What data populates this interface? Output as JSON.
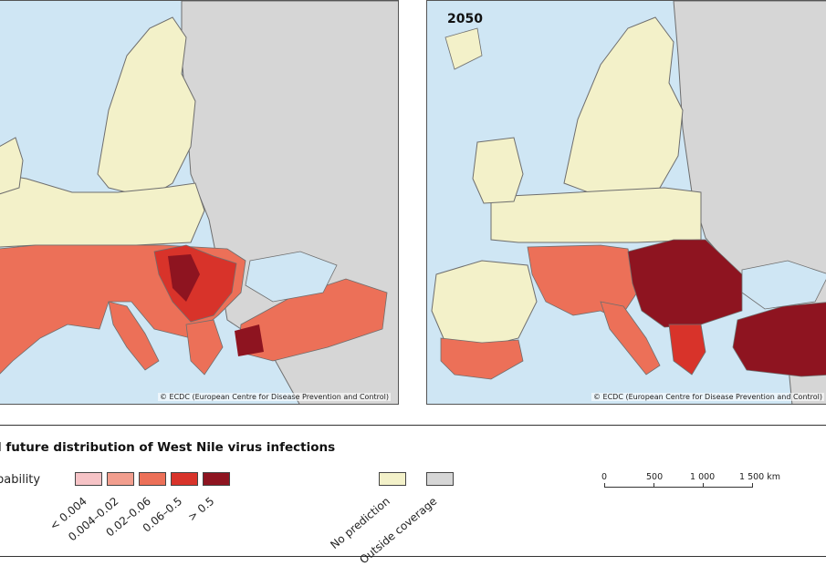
{
  "maps": {
    "left": {
      "credit": "© ECDC (European Centre for Disease Prevention and Control)"
    },
    "right": {
      "year": "2050",
      "credit": "© ECDC (European Centre for Disease Prevention and Control)"
    }
  },
  "legend": {
    "title": "d future distribution of West Nile virus infections",
    "subtitle": "bability",
    "classes": [
      {
        "label": "< 0.004",
        "color": "#f6c3c6"
      },
      {
        "label": "0.004–0.02",
        "color": "#f29e8e"
      },
      {
        "label": "0.02–0.06",
        "color": "#ec7058"
      },
      {
        "label": "0.06–0.5",
        "color": "#d8332a"
      },
      {
        "label": "> 0.5",
        "color": "#8e1420"
      }
    ],
    "other": [
      {
        "label": "No prediction",
        "color": "#f3f1c9"
      },
      {
        "label": "Outside coverage",
        "color": "#d6d6d6"
      }
    ]
  },
  "scalebar": {
    "ticks": [
      "0",
      "500",
      "1 000",
      "1 500 km"
    ]
  },
  "colors": {
    "sea": "#cfe6f4",
    "border": "#6e6e6e"
  }
}
